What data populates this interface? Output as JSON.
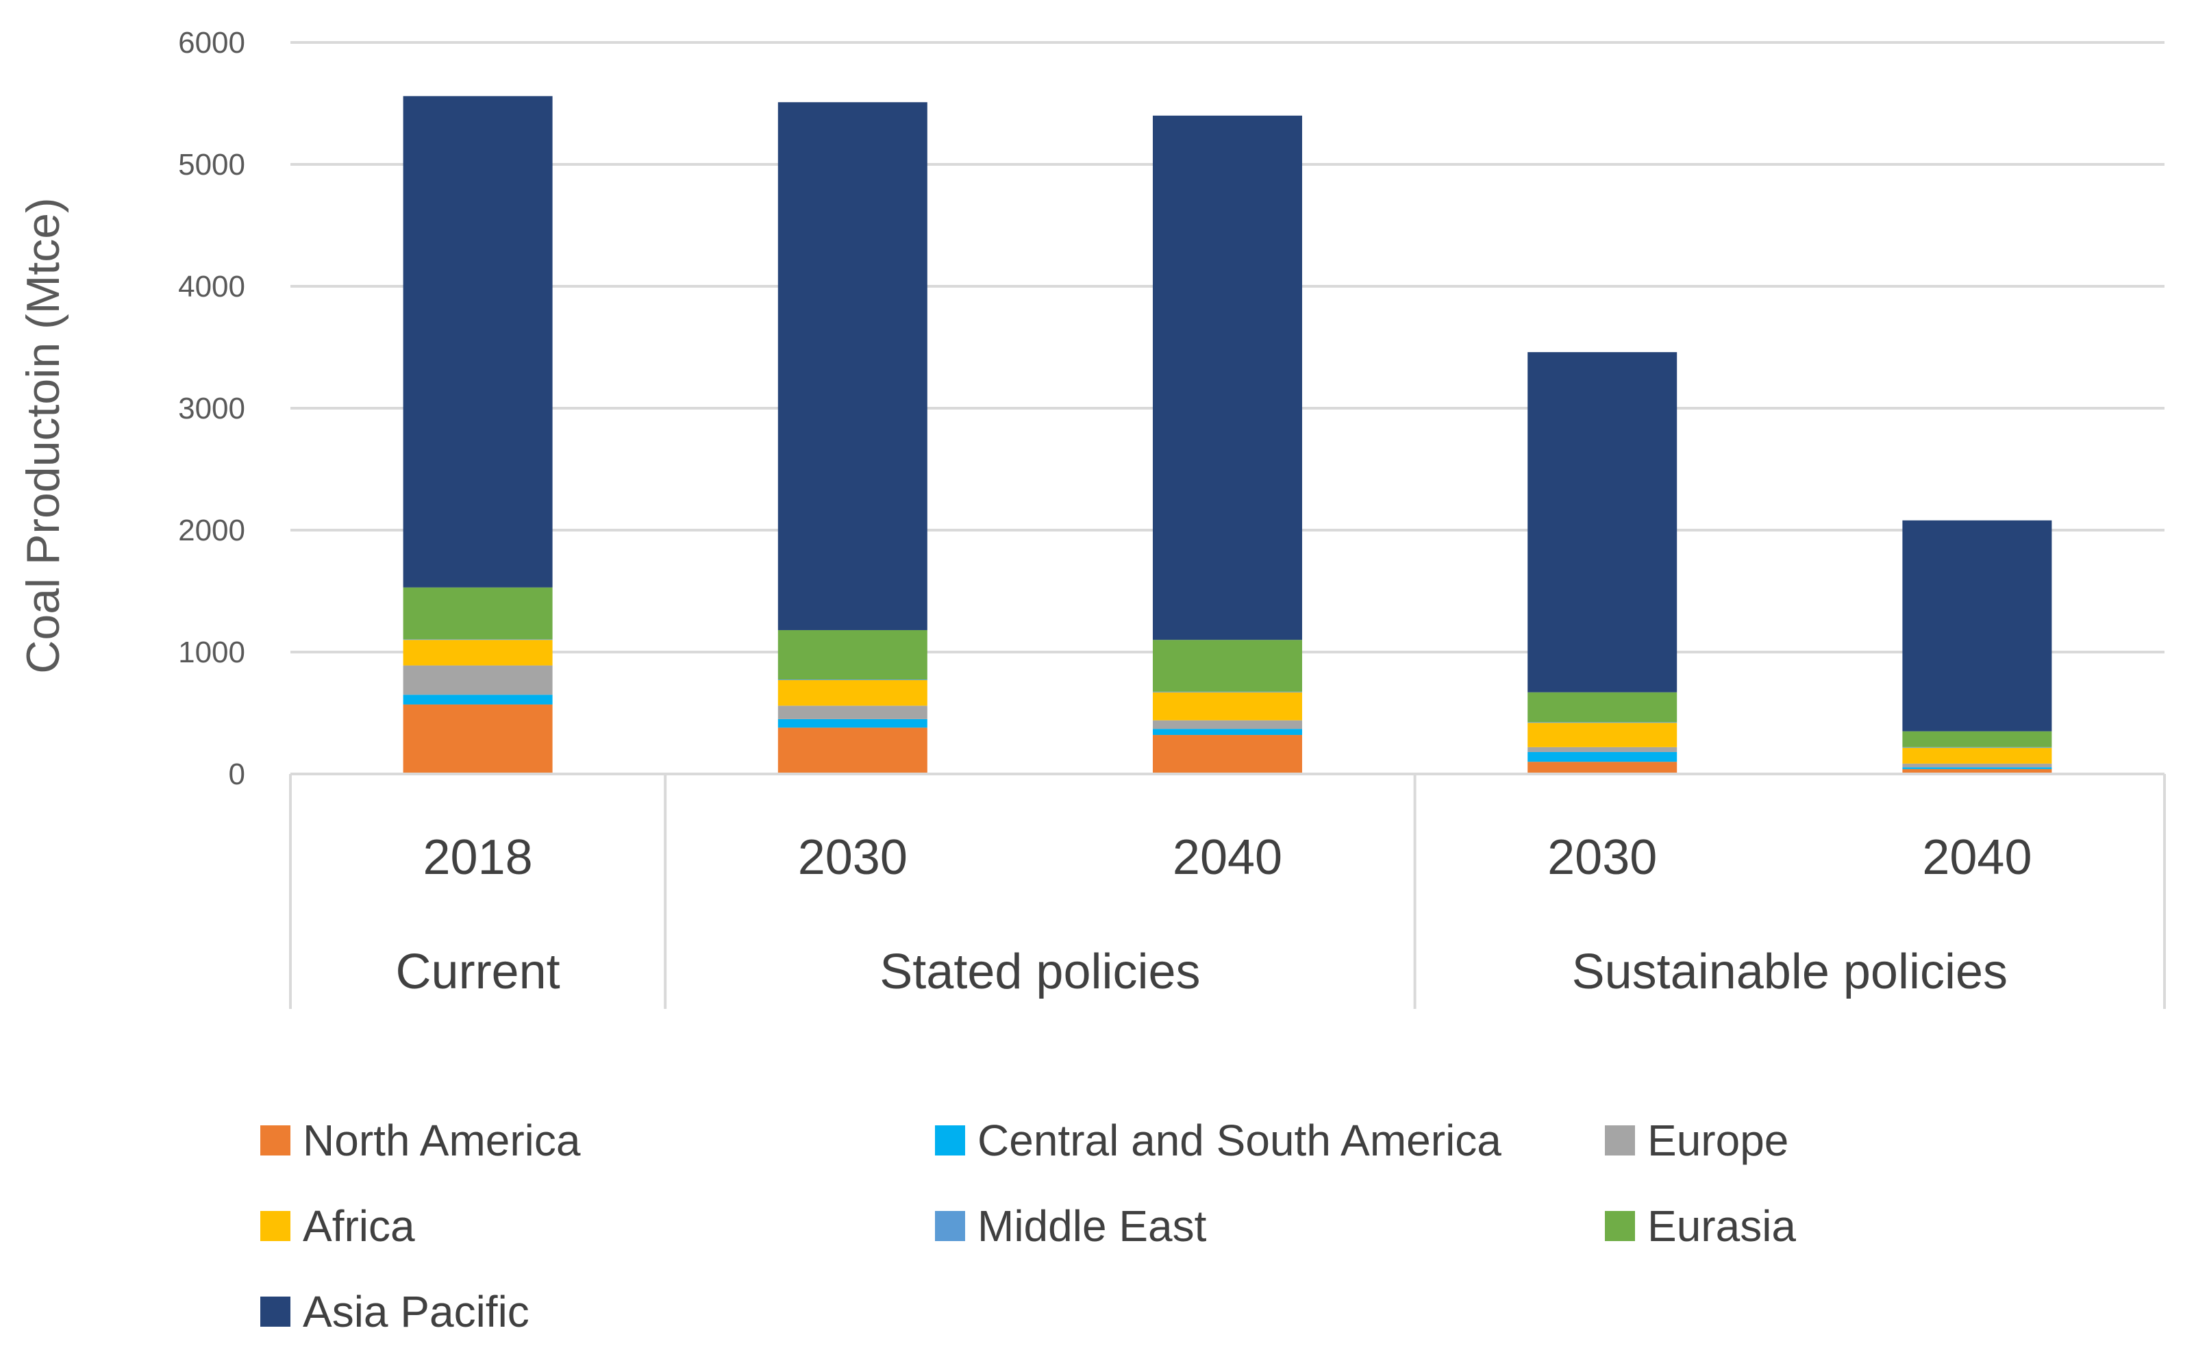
{
  "chart_data": {
    "type": "bar",
    "stacked": true,
    "ylabel": "Coal Productoin (Mtce)",
    "ylim": [
      0,
      6000
    ],
    "yticks": [
      0,
      1000,
      2000,
      3000,
      4000,
      5000,
      6000
    ],
    "grid": true,
    "categories": [
      "2018",
      "2030",
      "2040",
      "2030",
      "2040"
    ],
    "groups": [
      {
        "label": "Current",
        "span": 1
      },
      {
        "label": "Stated policies",
        "span": 2
      },
      {
        "label": "Sustainable policies",
        "span": 2
      }
    ],
    "series": [
      {
        "name": "North America",
        "color": "#ED7D31",
        "values": [
          570,
          380,
          320,
          100,
          40
        ]
      },
      {
        "name": "Central and South America",
        "color": "#00B0F0",
        "values": [
          80,
          70,
          50,
          80,
          15
        ]
      },
      {
        "name": "Europe",
        "color": "#A5A5A5",
        "values": [
          240,
          110,
          70,
          40,
          30
        ]
      },
      {
        "name": "Africa",
        "color": "#FFC000",
        "values": [
          210,
          210,
          230,
          200,
          130
        ]
      },
      {
        "name": "Middle East",
        "color": "#5B9BD5",
        "values": [
          5,
          5,
          5,
          5,
          5
        ]
      },
      {
        "name": "Eurasia",
        "color": "#70AD47",
        "values": [
          425,
          405,
          425,
          245,
          130
        ]
      },
      {
        "name": "Asia Pacific",
        "color": "#264478",
        "values": [
          4030,
          4330,
          4300,
          2790,
          1730
        ]
      }
    ],
    "legend_position": "bottom"
  }
}
